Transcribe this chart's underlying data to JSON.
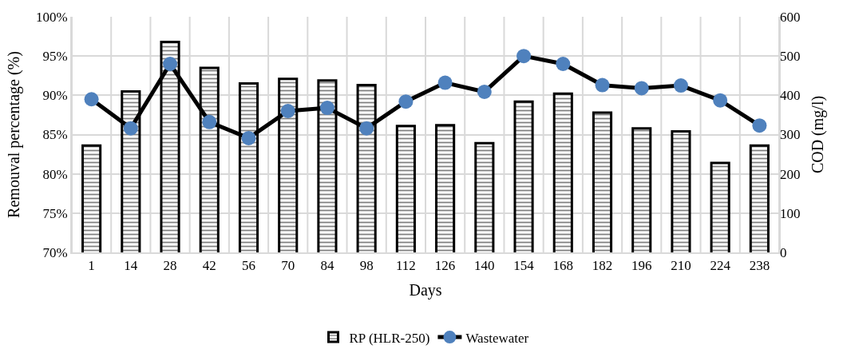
{
  "chart_data": {
    "type": "bar",
    "xlabel": "Days",
    "ylabel": "Remouval percentage (%)",
    "y2label": "COD (mg/l)",
    "categories": [
      "1",
      "14",
      "28",
      "42",
      "56",
      "70",
      "84",
      "98",
      "112",
      "126",
      "140",
      "154",
      "168",
      "182",
      "196",
      "210",
      "224",
      "238"
    ],
    "series": [
      {
        "name": "RP (HLR-250)",
        "color": "#000000",
        "values": [
          83.6,
          90.5,
          96.8,
          93.5,
          91.5,
          92.1,
          91.9,
          91.3,
          86.1,
          86.2,
          83.9,
          89.2,
          90.2,
          87.8,
          85.8,
          85.4,
          81.4,
          83.6
        ]
      },
      {
        "name": "Wastewater",
        "type": "line",
        "axis": "y2",
        "color": "#4f81bd",
        "marker": "circle",
        "values": [
          390,
          316,
          480,
          332,
          291,
          360,
          368,
          316,
          384,
          432,
          409,
          500,
          480,
          426,
          418,
          425,
          387,
          323
        ]
      }
    ],
    "ylim": [
      70,
      100
    ],
    "yticks": [
      {
        "value": 70,
        "label": "70%"
      },
      {
        "value": 75,
        "label": "75%"
      },
      {
        "value": 80,
        "label": "80%"
      },
      {
        "value": 85,
        "label": "85%"
      },
      {
        "value": 90,
        "label": "90%"
      },
      {
        "value": 95,
        "label": "95%"
      },
      {
        "value": 100,
        "label": "100%"
      }
    ],
    "y2lim": [
      0,
      600
    ],
    "y2ticks": [
      0,
      100,
      200,
      300,
      400,
      500,
      600
    ],
    "grid": true,
    "legend": "bottom"
  }
}
